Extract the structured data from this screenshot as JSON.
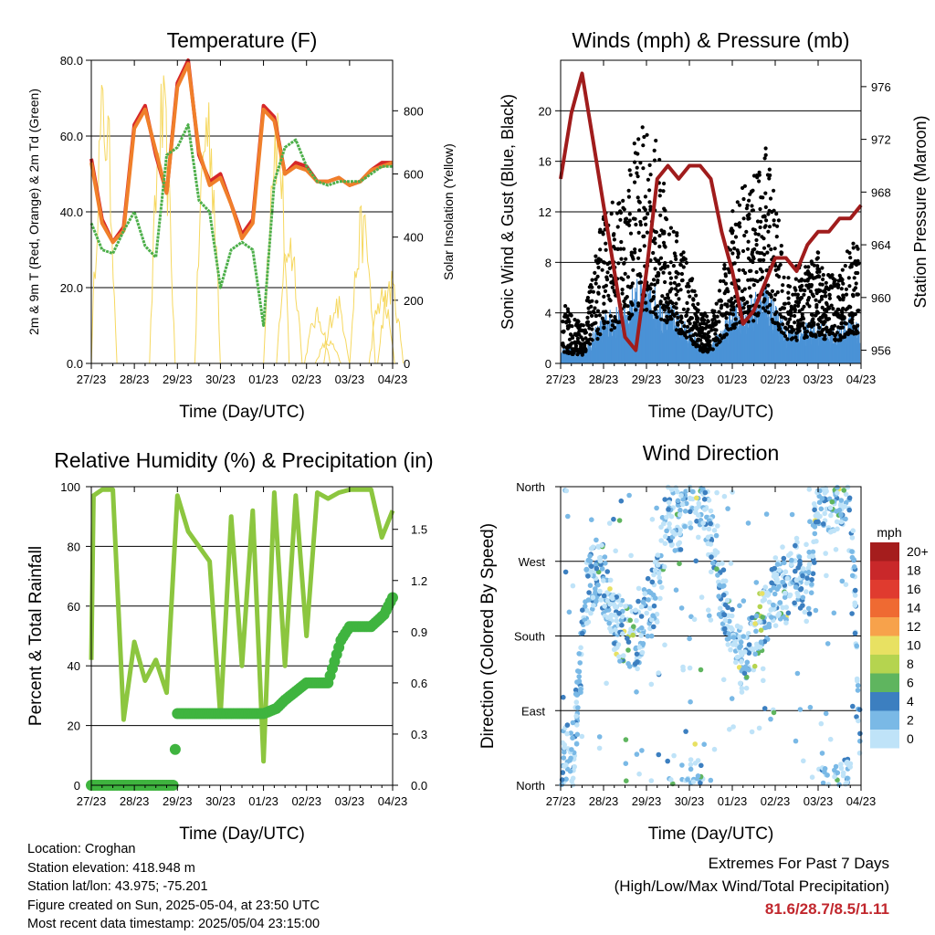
{
  "colors": {
    "red": "#d62728",
    "orange": "#f07f2a",
    "green": "#4daf4a",
    "yellow": "#f6d860",
    "blue": "#4a92d6",
    "black": "#000000",
    "maroon": "#a01c1c",
    "rh_green": "#8cc63f",
    "precip_green": "#3fb43f",
    "extremes": "#c1272d"
  },
  "x_ticks": [
    "27/23",
    "28/23",
    "29/23",
    "30/23",
    "01/23",
    "02/23",
    "03/23",
    "04/23"
  ],
  "x_label": "Time (Day/UTC)",
  "chart_data": [
    {
      "id": "temperature",
      "type": "line",
      "title": "Temperature (F)",
      "xlabel": "Time (Day/UTC)",
      "ylabel": "2m & 9m T (Red, Orange) & 2m Td (Green)",
      "ylabel_right": "Solar Insolation (Yellow)",
      "ylim": [
        0,
        80
      ],
      "ylim_right": [
        0,
        960
      ],
      "yticks": [
        "0.0",
        "20.0",
        "40.0",
        "60.0",
        "80.0"
      ],
      "yticks_right": [
        "0",
        "200",
        "400",
        "600",
        "800"
      ],
      "x": [
        0,
        0.25,
        0.5,
        0.75,
        1,
        1.25,
        1.5,
        1.75,
        2,
        2.25,
        2.5,
        2.75,
        3,
        3.25,
        3.5,
        3.75,
        4,
        4.25,
        4.5,
        4.75,
        5,
        5.25,
        5.5,
        5.75,
        6,
        6.25,
        6.5,
        6.75,
        7
      ],
      "series": [
        {
          "name": "2m T",
          "color": "red",
          "values": [
            54,
            38,
            32,
            36,
            63,
            68,
            55,
            45,
            74,
            80,
            55,
            48,
            50,
            42,
            34,
            38,
            68,
            65,
            50,
            53,
            52,
            48,
            48,
            49,
            47,
            48,
            51,
            53,
            53
          ]
        },
        {
          "name": "9m T",
          "color": "orange",
          "values": [
            53,
            37,
            32,
            35,
            62,
            67,
            56,
            45,
            73,
            79,
            56,
            47,
            49,
            42,
            33,
            37,
            67,
            64,
            50,
            52,
            51,
            48,
            48,
            49,
            47,
            48,
            51,
            52,
            53
          ]
        },
        {
          "name": "2m Td",
          "color": "green",
          "values": [
            37,
            30,
            29,
            35,
            40,
            31,
            28,
            55,
            57,
            63,
            43,
            40,
            20,
            30,
            32,
            30,
            10,
            48,
            57,
            59,
            52,
            48,
            47,
            48,
            48,
            48,
            50,
            52,
            52
          ]
        }
      ],
      "insolation": {
        "peaks": [
          {
            "x": 0.3,
            "v": 960
          },
          {
            "x": 1.65,
            "v": 930
          },
          {
            "x": 2.7,
            "v": 940
          },
          {
            "x": 4.3,
            "v": 900
          },
          {
            "x": 4.6,
            "v": 470
          },
          {
            "x": 5.25,
            "v": 180
          },
          {
            "x": 5.5,
            "v": 80
          },
          {
            "x": 5.7,
            "v": 230
          },
          {
            "x": 6.3,
            "v": 520
          },
          {
            "x": 6.75,
            "v": 250
          },
          {
            "x": 6.95,
            "v": 300
          }
        ]
      }
    },
    {
      "id": "winds",
      "type": "scatter",
      "title": "Winds (mph) & Pressure (mb)",
      "xlabel": "Time (Day/UTC)",
      "ylabel": "Sonic Wind & Gust (Blue, Black)",
      "ylabel_right": "Station Pressure (Maroon)",
      "ylim": [
        0,
        24
      ],
      "ylim_right": [
        955,
        978
      ],
      "yticks": [
        "0",
        "4",
        "8",
        "12",
        "16",
        "20"
      ],
      "yticks_right": [
        "956",
        "960",
        "964",
        "968",
        "972",
        "976"
      ],
      "gust_envelope": {
        "x": [
          0,
          0.5,
          1,
          1.5,
          1.75,
          2,
          2.25,
          2.5,
          2.75,
          3,
          3.25,
          3.5,
          3.75,
          4,
          4.25,
          4.5,
          4.75,
          5,
          5.25,
          5.5,
          5.75,
          6,
          6.25,
          6.5,
          6.75,
          7
        ],
        "values": [
          5,
          3,
          12,
          14,
          20,
          19,
          18,
          12,
          10,
          8,
          4,
          4,
          7,
          12,
          14,
          15,
          18,
          14,
          7,
          8,
          8,
          9,
          7,
          7,
          10,
          9
        ]
      },
      "wind_envelope": {
        "x": [
          0,
          0.5,
          1,
          1.5,
          1.75,
          2,
          2.25,
          2.5,
          2.75,
          3,
          3.25,
          3.5,
          3.75,
          4,
          4.25,
          4.5,
          4.75,
          5,
          5.25,
          5.5,
          5.75,
          6,
          6.25,
          6.5,
          6.75,
          7
        ],
        "values": [
          1.5,
          1,
          4,
          5,
          7,
          7,
          6,
          5,
          4,
          3,
          1.5,
          1.5,
          3,
          4.5,
          5.5,
          5.5,
          7,
          5,
          3,
          3,
          3.5,
          3.5,
          3,
          3,
          4,
          3.5
        ]
      },
      "pressure": {
        "x": [
          0,
          0.25,
          0.5,
          0.75,
          1,
          1.25,
          1.5,
          1.75,
          2,
          2.25,
          2.5,
          2.75,
          3,
          3.25,
          3.5,
          3.75,
          4,
          4.25,
          4.5,
          4.75,
          5,
          5.25,
          5.5,
          5.75,
          6,
          6.25,
          6.5,
          6.75,
          7
        ],
        "values": [
          969,
          974,
          977,
          972,
          967,
          962,
          957,
          956,
          962,
          969,
          970,
          969,
          970,
          970,
          969,
          965,
          962,
          958,
          959,
          961,
          963,
          963,
          962,
          964,
          965,
          965,
          966,
          966,
          967
        ]
      }
    },
    {
      "id": "humidity",
      "type": "line",
      "title": "Relative Humidity (%) & Precipitation (in)",
      "xlabel": "Time (Day/UTC)",
      "ylabel": "Percent & Total Rainfall",
      "ylim": [
        0,
        100
      ],
      "ylim_right": [
        0,
        1.75
      ],
      "yticks": [
        "0",
        "20",
        "40",
        "60",
        "80",
        "100"
      ],
      "yticks_right": [
        "0.0",
        "0.3",
        "0.6",
        "0.9",
        "1.2",
        "1.5"
      ],
      "series": [
        {
          "name": "RH",
          "color": "rh_green",
          "x": [
            0,
            0.05,
            0.25,
            0.5,
            0.75,
            1,
            1.25,
            1.5,
            1.75,
            2,
            2.25,
            2.5,
            2.75,
            3,
            3.25,
            3.5,
            3.75,
            4,
            4.25,
            4.5,
            4.75,
            5,
            5.25,
            5.5,
            5.75,
            6,
            6.25,
            6.5,
            6.75,
            7
          ],
          "values": [
            42,
            97,
            99,
            99,
            22,
            48,
            35,
            42,
            31,
            97,
            85,
            80,
            75,
            23,
            90,
            40,
            92,
            8,
            98,
            40,
            97,
            50,
            98,
            96,
            98,
            99,
            99,
            99,
            83,
            92
          ]
        },
        {
          "name": "Precip",
          "color": "precip_green",
          "x": [
            0,
            0.5,
            1,
            1.5,
            1.9,
            2,
            2.25,
            2.5,
            3,
            3.5,
            4,
            4.3,
            4.5,
            4.8,
            5,
            5.3,
            5.5,
            5.8,
            6,
            6.5,
            6.8,
            7
          ],
          "values": [
            0,
            0,
            0,
            0,
            0,
            0.42,
            0.42,
            0.42,
            0.42,
            0.42,
            0.42,
            0.45,
            0.5,
            0.56,
            0.6,
            0.6,
            0.6,
            0.85,
            0.93,
            0.93,
            1.0,
            1.1
          ]
        }
      ]
    },
    {
      "id": "wind_direction",
      "type": "scatter",
      "title": "Wind Direction",
      "xlabel": "Time (Day/UTC)",
      "ylabel": "Direction (Colored By Speed)",
      "ylim": [
        0,
        360
      ],
      "yticks": [
        "North",
        "East",
        "South",
        "West",
        "North"
      ],
      "colorbar_unit": "mph",
      "colorbar_labels": [
        "20+",
        "18",
        "16",
        "14",
        "12",
        "10",
        "8",
        "6",
        "4",
        "2",
        "0"
      ],
      "colorbar_colors": [
        "#a51d1d",
        "#c9282a",
        "#e03b2f",
        "#ef6a32",
        "#f7a24b",
        "#e8e162",
        "#b5d44f",
        "#5fb55f",
        "#3c7fc0",
        "#7ab9e6",
        "#bfe3f8"
      ],
      "direction_path": {
        "x": [
          0,
          0.3,
          0.6,
          0.9,
          1.2,
          1.5,
          1.75,
          2,
          2.25,
          2.5,
          2.75,
          3,
          3.25,
          3.5,
          3.75,
          4,
          4.25,
          4.5,
          4.75,
          5,
          5.25,
          5.5,
          5.75,
          6,
          6.25,
          6.5,
          6.75,
          7
        ],
        "values": [
          30,
          40,
          230,
          270,
          200,
          180,
          175,
          205,
          235,
          335,
          315,
          355,
          350,
          300,
          230,
          195,
          140,
          170,
          210,
          230,
          235,
          260,
          220,
          345,
          340,
          350,
          355,
          20
        ]
      }
    }
  ],
  "info": {
    "location": "Location: Croghan",
    "elevation": "Station elevation: 418.948 m",
    "latlon": "Station lat/lon: 43.975; -75.201",
    "created": "Figure created on Sun, 2025-05-04, at 23:50 UTC",
    "recent": "Most recent data timestamp: 2025/05/04 23:15:00"
  },
  "extremes": {
    "title": "Extremes For Past 7 Days",
    "subtitle": "(High/Low/Max Wind/Total Precipitation)",
    "values": "81.6/28.7/8.5/1.11"
  }
}
